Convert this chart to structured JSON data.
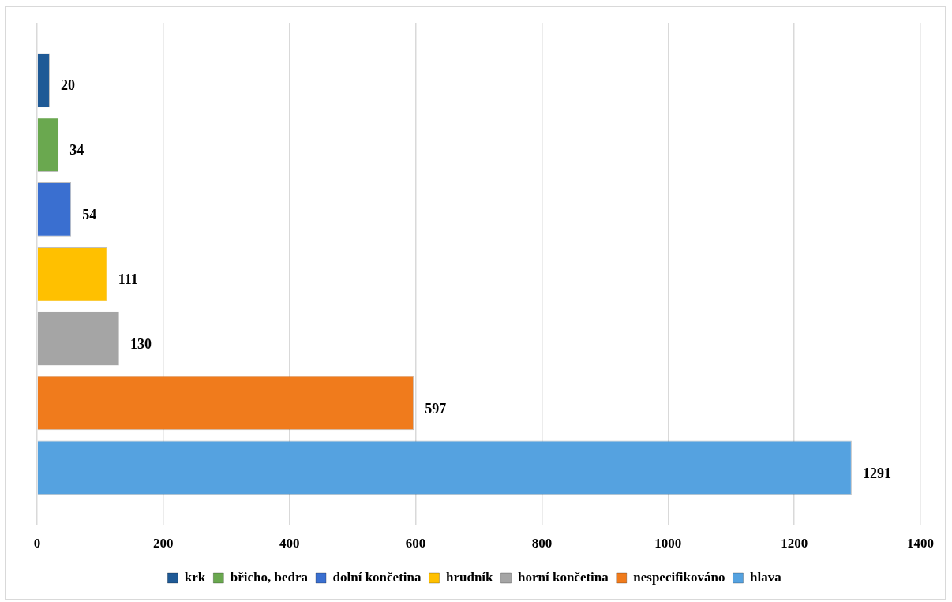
{
  "chart_data": {
    "type": "bar",
    "orientation": "horizontal",
    "categories": [
      null
    ],
    "series": [
      {
        "name": "krk",
        "color": "#1f5a96",
        "values": [
          20
        ]
      },
      {
        "name": "břicho, bedra",
        "color": "#6aa84f",
        "values": [
          34
        ]
      },
      {
        "name": "dolní končetina",
        "color": "#3a6fd0",
        "values": [
          54
        ]
      },
      {
        "name": "hrudník",
        "color": "#ffc000",
        "values": [
          111
        ]
      },
      {
        "name": "horní končetina",
        "color": "#a5a5a5",
        "values": [
          130
        ]
      },
      {
        "name": "nespecifikováno",
        "color": "#f07b1c",
        "values": [
          597
        ]
      },
      {
        "name": "hlava",
        "color": "#55a2e0",
        "values": [
          1291
        ]
      }
    ],
    "xlim": [
      0,
      1400
    ],
    "xticks": [
      0,
      200,
      400,
      600,
      800,
      1000,
      1200,
      1400
    ],
    "grid": "x",
    "legend": "bottom",
    "data_labels": true
  }
}
